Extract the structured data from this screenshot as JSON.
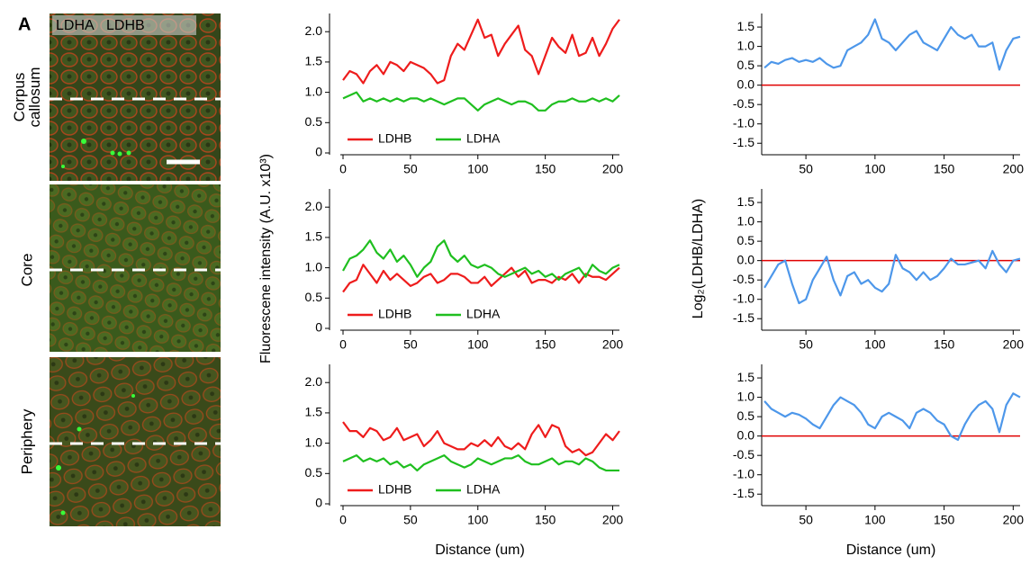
{
  "figure": {
    "panel": "A",
    "stain_labels": [
      {
        "text": "LDHA",
        "color": "#22dd22"
      },
      {
        "text": "LDHB",
        "color": "#ff2a2a"
      }
    ],
    "region_labels": [
      "Corpus callosum",
      "Core",
      "Periphery"
    ]
  },
  "chart_data": [
    {
      "type": "line",
      "legend": "lower left",
      "x": [
        0,
        5,
        10,
        15,
        20,
        25,
        30,
        35,
        40,
        45,
        50,
        55,
        60,
        65,
        70,
        75,
        80,
        85,
        90,
        95,
        100,
        105,
        110,
        115,
        120,
        125,
        130,
        135,
        140,
        145,
        150,
        155,
        160,
        165,
        170,
        175,
        180,
        185,
        190,
        195,
        200,
        205
      ],
      "series": [
        {
          "name": "LDHB",
          "color": "#ee1c1c",
          "values": [
            1.2,
            1.35,
            1.3,
            1.15,
            1.35,
            1.45,
            1.3,
            1.5,
            1.45,
            1.35,
            1.5,
            1.45,
            1.4,
            1.3,
            1.15,
            1.2,
            1.6,
            1.8,
            1.7,
            1.95,
            2.2,
            1.9,
            1.95,
            1.6,
            1.8,
            1.95,
            2.1,
            1.7,
            1.6,
            1.3,
            1.6,
            1.9,
            1.75,
            1.65,
            1.95,
            1.6,
            1.65,
            1.9,
            1.6,
            1.8,
            2.05,
            2.2
          ]
        },
        {
          "name": "LDHA",
          "color": "#1fbf1f",
          "values": [
            0.9,
            0.95,
            1.0,
            0.85,
            0.9,
            0.85,
            0.9,
            0.85,
            0.9,
            0.85,
            0.9,
            0.9,
            0.85,
            0.9,
            0.85,
            0.8,
            0.85,
            0.9,
            0.9,
            0.8,
            0.7,
            0.8,
            0.85,
            0.9,
            0.85,
            0.8,
            0.85,
            0.85,
            0.8,
            0.7,
            0.7,
            0.8,
            0.85,
            0.85,
            0.9,
            0.85,
            0.85,
            0.9,
            0.85,
            0.9,
            0.85,
            0.95
          ]
        }
      ],
      "xlim": [
        -2,
        205
      ],
      "ylim": [
        0,
        2.3
      ],
      "xticks": [
        0,
        50,
        100,
        150,
        200
      ],
      "yticks": [
        0,
        0.5,
        {
          "value": 1,
          "label": "1.0"
        },
        1.5,
        {
          "value": 2,
          "label": "2.0"
        }
      ]
    },
    {
      "type": "line",
      "legend": "lower left",
      "ylabel": "Fluorescene intensity (A.U. x10³)",
      "x": [
        0,
        5,
        10,
        15,
        20,
        25,
        30,
        35,
        40,
        45,
        50,
        55,
        60,
        65,
        70,
        75,
        80,
        85,
        90,
        95,
        100,
        105,
        110,
        115,
        120,
        125,
        130,
        135,
        140,
        145,
        150,
        155,
        160,
        165,
        170,
        175,
        180,
        185,
        190,
        195,
        200,
        205
      ],
      "series": [
        {
          "name": "LDHB",
          "color": "#ee1c1c",
          "values": [
            0.6,
            0.75,
            0.8,
            1.05,
            0.9,
            0.75,
            0.95,
            0.8,
            0.9,
            0.8,
            0.7,
            0.75,
            0.85,
            0.9,
            0.75,
            0.8,
            0.9,
            0.9,
            0.85,
            0.75,
            0.75,
            0.85,
            0.7,
            0.8,
            0.9,
            1.0,
            0.85,
            0.95,
            0.75,
            0.8,
            0.8,
            0.75,
            0.85,
            0.8,
            0.9,
            0.75,
            0.9,
            0.85,
            0.85,
            0.8,
            0.9,
            1.0
          ]
        },
        {
          "name": "LDHA",
          "color": "#1fbf1f",
          "values": [
            0.95,
            1.15,
            1.2,
            1.3,
            1.45,
            1.25,
            1.15,
            1.3,
            1.1,
            1.2,
            1.05,
            0.85,
            1.0,
            1.1,
            1.35,
            1.45,
            1.2,
            1.1,
            1.2,
            1.05,
            1.0,
            1.05,
            1.0,
            0.9,
            0.85,
            0.9,
            0.95,
            1.0,
            0.9,
            0.95,
            0.85,
            0.9,
            0.8,
            0.9,
            0.95,
            1.0,
            0.85,
            1.05,
            0.95,
            0.9,
            1.0,
            1.05
          ]
        }
      ],
      "xlim": [
        -2,
        205
      ],
      "ylim": [
        0,
        2.3
      ],
      "xticks": [
        0,
        50,
        100,
        150,
        200
      ],
      "yticks": [
        0,
        0.5,
        {
          "value": 1,
          "label": "1.0"
        },
        1.5,
        {
          "value": 2,
          "label": "2.0"
        }
      ]
    },
    {
      "type": "line",
      "legend": "lower left",
      "xlabel": "Distance (um)",
      "x": [
        0,
        5,
        10,
        15,
        20,
        25,
        30,
        35,
        40,
        45,
        50,
        55,
        60,
        65,
        70,
        75,
        80,
        85,
        90,
        95,
        100,
        105,
        110,
        115,
        120,
        125,
        130,
        135,
        140,
        145,
        150,
        155,
        160,
        165,
        170,
        175,
        180,
        185,
        190,
        195,
        200,
        205
      ],
      "series": [
        {
          "name": "LDHB",
          "color": "#ee1c1c",
          "values": [
            1.35,
            1.2,
            1.2,
            1.1,
            1.25,
            1.2,
            1.05,
            1.1,
            1.25,
            1.05,
            1.1,
            1.15,
            0.95,
            1.05,
            1.2,
            1.0,
            0.95,
            0.9,
            0.9,
            1.0,
            0.95,
            1.05,
            0.95,
            1.1,
            0.95,
            0.9,
            1.0,
            0.9,
            1.15,
            1.3,
            1.1,
            1.3,
            1.25,
            0.95,
            0.85,
            0.9,
            0.8,
            0.85,
            1.0,
            1.15,
            1.05,
            1.2
          ]
        },
        {
          "name": "LDHA",
          "color": "#1fbf1f",
          "values": [
            0.7,
            0.75,
            0.8,
            0.7,
            0.75,
            0.7,
            0.75,
            0.65,
            0.7,
            0.6,
            0.65,
            0.55,
            0.65,
            0.7,
            0.75,
            0.8,
            0.7,
            0.65,
            0.6,
            0.65,
            0.75,
            0.7,
            0.65,
            0.7,
            0.75,
            0.75,
            0.8,
            0.7,
            0.65,
            0.65,
            0.7,
            0.75,
            0.65,
            0.7,
            0.7,
            0.65,
            0.75,
            0.7,
            0.6,
            0.55,
            0.55,
            0.55
          ]
        }
      ],
      "xlim": [
        -2,
        205
      ],
      "ylim": [
        0,
        2.3
      ],
      "xticks": [
        0,
        50,
        100,
        150,
        200
      ],
      "yticks": [
        0,
        0.5,
        {
          "value": 1,
          "label": "1.0"
        },
        1.5,
        {
          "value": 2,
          "label": "2.0"
        }
      ]
    },
    {
      "type": "line",
      "x": [
        20,
        25,
        30,
        35,
        40,
        45,
        50,
        55,
        60,
        65,
        70,
        75,
        80,
        85,
        90,
        95,
        100,
        105,
        110,
        115,
        120,
        125,
        130,
        135,
        140,
        145,
        150,
        155,
        160,
        165,
        170,
        175,
        180,
        185,
        190,
        195,
        200,
        205
      ],
      "series": [
        {
          "color": "#4d97ea",
          "values": [
            0.45,
            0.6,
            0.55,
            0.65,
            0.7,
            0.6,
            0.65,
            0.6,
            0.7,
            0.55,
            0.45,
            0.5,
            0.9,
            1.0,
            1.1,
            1.3,
            1.7,
            1.2,
            1.1,
            0.9,
            1.1,
            1.3,
            1.4,
            1.1,
            1.0,
            0.9,
            1.2,
            1.5,
            1.3,
            1.2,
            1.3,
            1.0,
            1.0,
            1.1,
            0.4,
            0.9,
            1.2,
            1.25
          ]
        }
      ],
      "reference_line": {
        "value": 0,
        "color": "#e00000"
      },
      "xlim": [
        18,
        205
      ],
      "ylim": [
        -1.75,
        1.85
      ],
      "xticks": [
        50,
        100,
        150,
        200
      ],
      "yticks": [
        -1.5,
        {
          "value": -1,
          "label": "-1.0"
        },
        -0.5,
        {
          "value": 0,
          "label": "0.0"
        },
        0.5,
        {
          "value": 1,
          "label": "1.0"
        },
        1.5
      ]
    },
    {
      "type": "line",
      "ylabel": "Log₂(LDHB/LDHA)",
      "x": [
        20,
        25,
        30,
        35,
        40,
        45,
        50,
        55,
        60,
        65,
        70,
        75,
        80,
        85,
        90,
        95,
        100,
        105,
        110,
        115,
        120,
        125,
        130,
        135,
        140,
        145,
        150,
        155,
        160,
        165,
        170,
        175,
        180,
        185,
        190,
        195,
        200,
        205
      ],
      "series": [
        {
          "color": "#4d97ea",
          "values": [
            -0.7,
            -0.4,
            -0.1,
            0.0,
            -0.6,
            -1.1,
            -1.0,
            -0.5,
            -0.2,
            0.1,
            -0.5,
            -0.9,
            -0.4,
            -0.3,
            -0.6,
            -0.5,
            -0.7,
            -0.8,
            -0.6,
            0.15,
            -0.2,
            -0.3,
            -0.5,
            -0.3,
            -0.5,
            -0.4,
            -0.2,
            0.05,
            -0.1,
            -0.1,
            -0.05,
            0.0,
            -0.2,
            0.25,
            -0.1,
            -0.3,
            0.0,
            0.05
          ]
        }
      ],
      "reference_line": {
        "value": 0,
        "color": "#e00000"
      },
      "xlim": [
        18,
        205
      ],
      "ylim": [
        -1.75,
        1.85
      ],
      "xticks": [
        50,
        100,
        150,
        200
      ],
      "yticks": [
        -1.5,
        {
          "value": -1,
          "label": "-1.0"
        },
        -0.5,
        {
          "value": 0,
          "label": "0.0"
        },
        0.5,
        {
          "value": 1,
          "label": "1.0"
        },
        1.5
      ]
    },
    {
      "type": "line",
      "xlabel": "Distance (um)",
      "x": [
        20,
        25,
        30,
        35,
        40,
        45,
        50,
        55,
        60,
        65,
        70,
        75,
        80,
        85,
        90,
        95,
        100,
        105,
        110,
        115,
        120,
        125,
        130,
        135,
        140,
        145,
        150,
        155,
        160,
        165,
        170,
        175,
        180,
        185,
        190,
        195,
        200,
        205
      ],
      "series": [
        {
          "color": "#4d97ea",
          "values": [
            0.9,
            0.7,
            0.6,
            0.5,
            0.6,
            0.55,
            0.45,
            0.3,
            0.2,
            0.5,
            0.8,
            1.0,
            0.9,
            0.8,
            0.6,
            0.3,
            0.2,
            0.5,
            0.6,
            0.5,
            0.4,
            0.2,
            0.6,
            0.7,
            0.6,
            0.4,
            0.3,
            0.0,
            -0.1,
            0.3,
            0.6,
            0.8,
            0.9,
            0.7,
            0.1,
            0.8,
            1.1,
            1.0
          ]
        }
      ],
      "reference_line": {
        "value": 0,
        "color": "#e00000"
      },
      "xlim": [
        18,
        205
      ],
      "ylim": [
        -1.75,
        1.85
      ],
      "xticks": [
        50,
        100,
        150,
        200
      ],
      "yticks": [
        -1.5,
        {
          "value": -1,
          "label": "-1.0"
        },
        -0.5,
        {
          "value": 0,
          "label": "0.0"
        },
        0.5,
        {
          "value": 1,
          "label": "1.0"
        },
        1.5
      ]
    }
  ]
}
